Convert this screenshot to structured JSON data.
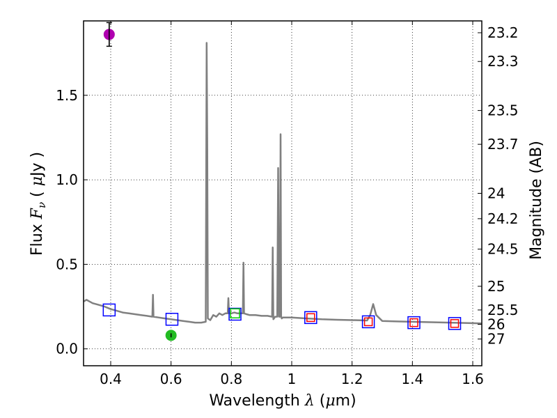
{
  "chart_data": {
    "type": "scatter",
    "xlabel": "Wavelength  λ (μm)",
    "ylabel": "Flux  Fν  ( μJy )",
    "ylabel_right": "Magnitude (AB)",
    "xlim": [
      0.31,
      1.63
    ],
    "ylim": [
      -0.1,
      1.94
    ],
    "grid": true,
    "x_ticks": [
      0.4,
      0.6,
      0.8,
      1.0,
      1.2,
      1.4,
      1.6
    ],
    "x_tick_labels": [
      "0.4",
      "0.6",
      "0.8",
      "1",
      "1.2",
      "1.4",
      "1.6"
    ],
    "y_ticks": [
      0.0,
      0.5,
      1.0,
      1.5
    ],
    "y_tick_labels": [
      "0.0",
      "0.5",
      "1.0",
      "1.5"
    ],
    "mag_ticks": [
      {
        "label": "23.2",
        "flux": 1.87
      },
      {
        "label": "23.3",
        "flux": 1.7
      },
      {
        "label": "23.5",
        "flux": 1.41
      },
      {
        "label": "23.7",
        "flux": 1.21
      },
      {
        "label": "24",
        "flux": 0.92
      },
      {
        "label": "24.2",
        "flux": 0.77
      },
      {
        "label": "24.5",
        "flux": 0.59
      },
      {
        "label": "25",
        "flux": 0.37
      },
      {
        "label": "25.5",
        "flux": 0.23
      },
      {
        "label": "26",
        "flux": 0.145
      },
      {
        "label": "27",
        "flux": 0.058
      }
    ],
    "series": [
      {
        "name": "SED model",
        "color": "#808080",
        "x": [
          0.31,
          0.32,
          0.33,
          0.34,
          0.36,
          0.38,
          0.4,
          0.42,
          0.44,
          0.46,
          0.48,
          0.5,
          0.52,
          0.538,
          0.54,
          0.542,
          0.56,
          0.58,
          0.6,
          0.62,
          0.64,
          0.66,
          0.68,
          0.7,
          0.715,
          0.718,
          0.72,
          0.722,
          0.73,
          0.74,
          0.75,
          0.76,
          0.77,
          0.78,
          0.788,
          0.79,
          0.792,
          0.8,
          0.81,
          0.82,
          0.83,
          0.838,
          0.84,
          0.842,
          0.85,
          0.86,
          0.88,
          0.9,
          0.92,
          0.935,
          0.937,
          0.939,
          0.945,
          0.952,
          0.955,
          0.958,
          0.961,
          0.963,
          0.965,
          0.967,
          0.97,
          0.98,
          1.0,
          1.05,
          1.1,
          1.15,
          1.2,
          1.25,
          1.26,
          1.27,
          1.28,
          1.3,
          1.35,
          1.4,
          1.45,
          1.5,
          1.55,
          1.6,
          1.63
        ],
        "y": [
          0.28,
          0.29,
          0.28,
          0.27,
          0.26,
          0.25,
          0.235,
          0.225,
          0.215,
          0.21,
          0.205,
          0.2,
          0.195,
          0.19,
          0.32,
          0.19,
          0.185,
          0.18,
          0.175,
          0.17,
          0.165,
          0.16,
          0.155,
          0.155,
          0.16,
          1.81,
          1.2,
          0.18,
          0.17,
          0.2,
          0.19,
          0.21,
          0.2,
          0.21,
          0.21,
          0.3,
          0.21,
          0.21,
          0.215,
          0.21,
          0.21,
          0.21,
          0.51,
          0.21,
          0.205,
          0.2,
          0.2,
          0.195,
          0.195,
          0.19,
          0.6,
          0.175,
          0.19,
          0.19,
          1.07,
          0.19,
          0.19,
          1.27,
          0.19,
          0.18,
          0.185,
          0.185,
          0.185,
          0.18,
          0.175,
          0.172,
          0.17,
          0.168,
          0.2,
          0.265,
          0.2,
          0.165,
          0.162,
          0.16,
          0.158,
          0.156,
          0.154,
          0.152,
          0.15
        ]
      },
      {
        "name": "blue squares",
        "color": "#0000ff",
        "marker": "square",
        "x": [
          0.395,
          0.603,
          0.812,
          1.063,
          1.254,
          1.405,
          1.54
        ],
        "y": [
          0.23,
          0.175,
          0.205,
          0.185,
          0.16,
          0.155,
          0.15
        ]
      },
      {
        "name": "red squares",
        "color": "#ff0000",
        "marker": "square",
        "x": [
          1.063,
          1.254,
          1.405,
          1.54
        ],
        "y": [
          0.185,
          0.16,
          0.155,
          0.15
        ]
      },
      {
        "name": "green square",
        "color": "#00cc00",
        "marker": "square",
        "x": [
          0.812
        ],
        "y": [
          0.21
        ]
      },
      {
        "name": "purple point",
        "color": "#b000b0",
        "marker": "circle",
        "x": [
          0.395
        ],
        "y": [
          1.86
        ],
        "yerr": [
          0.07
        ]
      },
      {
        "name": "green point",
        "color": "#22bb22",
        "marker": "circle",
        "x": [
          0.6
        ],
        "y": [
          0.08
        ],
        "yerr": [
          0.012
        ]
      }
    ]
  }
}
